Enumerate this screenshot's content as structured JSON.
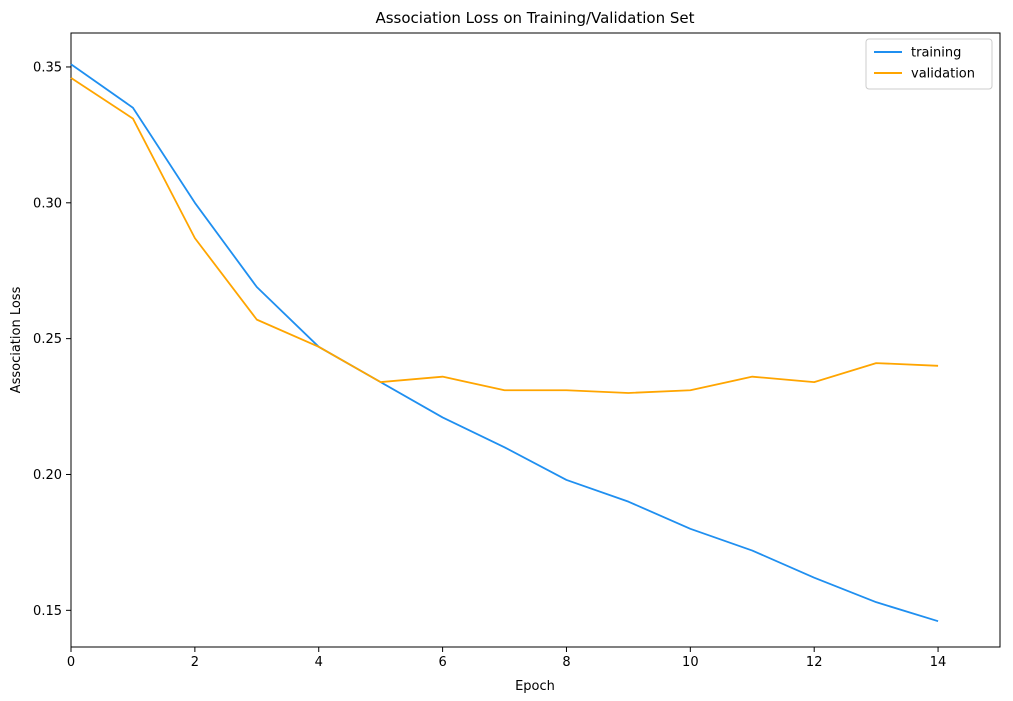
{
  "chart_data": {
    "type": "line",
    "title": "Association Loss on Training/Validation Set",
    "xlabel": "Epoch",
    "ylabel": "Association Loss",
    "xlim": [
      0,
      15
    ],
    "ylim": [
      0.1365,
      0.3625
    ],
    "x_ticks": [
      0,
      2,
      4,
      6,
      8,
      10,
      12,
      14
    ],
    "y_ticks": [
      0.15,
      0.2,
      0.25,
      0.3,
      0.35
    ],
    "y_tick_labels": [
      "0.15",
      "0.20",
      "0.25",
      "0.30",
      "0.35"
    ],
    "grid": false,
    "legend_position": "top-right",
    "x": [
      0,
      1,
      2,
      3,
      4,
      5,
      6,
      7,
      8,
      9,
      10,
      11,
      12,
      13,
      14
    ],
    "series": [
      {
        "name": "training",
        "color": "#1f8ff0",
        "values": [
          0.351,
          0.335,
          0.3,
          0.269,
          0.247,
          0.234,
          0.221,
          0.21,
          0.198,
          0.19,
          0.18,
          0.172,
          0.162,
          0.153,
          0.146
        ]
      },
      {
        "name": "validation",
        "color": "#ffa500",
        "values": [
          0.346,
          0.331,
          0.287,
          0.257,
          0.247,
          0.234,
          0.236,
          0.231,
          0.231,
          0.23,
          0.231,
          0.236,
          0.234,
          0.241,
          0.24
        ]
      }
    ]
  }
}
